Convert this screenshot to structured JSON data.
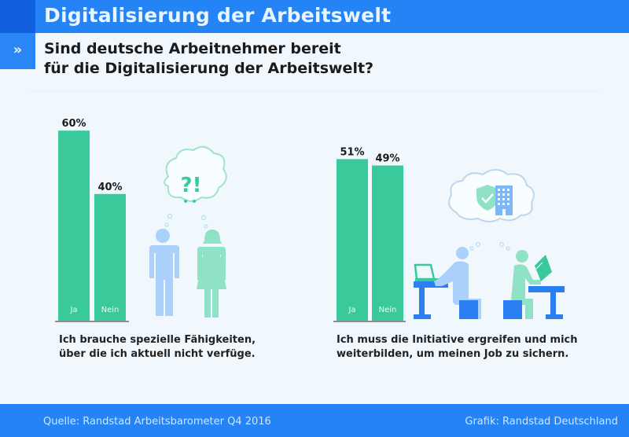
{
  "header": {
    "title": "Digitalisierung der Arbeitswelt",
    "marker_icon": "double-chevron-right-icon",
    "marker_glyph": "»"
  },
  "question": {
    "line1": "Sind deutsche Arbeitnehmer bereit",
    "line2": "für die Digitalisierung der Arbeitswelt?"
  },
  "colors": {
    "bar": "#39c99b",
    "header": "#2584f5",
    "accent_dark": "#0f5fdf",
    "figure_blue": "#a9d1fb",
    "figure_green": "#8fe2c6",
    "furniture": "#2b7ff0"
  },
  "chart_data": [
    {
      "type": "bar",
      "title": "Ich brauche spezielle Fähigkeiten, über die ich aktuell nicht verfüge.",
      "categories": [
        "Ja",
        "Nein"
      ],
      "values": [
        60,
        40
      ],
      "value_labels": [
        "60%",
        "40%"
      ],
      "unit": "%",
      "ylim": [
        0,
        100
      ],
      "grid": false,
      "caption": {
        "line1": "Ich brauche spezielle Fähigkeiten,",
        "line2": "über die ich aktuell nicht verfüge."
      }
    },
    {
      "type": "bar",
      "title": "Ich muss die Initiative ergreifen und mich weiterbilden, um meinen Job zu sichern.",
      "categories": [
        "Ja",
        "Nein"
      ],
      "values": [
        51,
        49
      ],
      "value_labels": [
        "51%",
        "49%"
      ],
      "unit": "%",
      "ylim": [
        0,
        100
      ],
      "grid": false,
      "caption": {
        "line1": "Ich muss die Initiative ergreifen und mich",
        "line2": "weiterbilden, um meinen Job zu sichern."
      }
    }
  ],
  "illustrations": {
    "left_thought": "?!",
    "left_icons": [
      "man-icon",
      "woman-icon",
      "thought-bubble-icon"
    ],
    "right_icons": [
      "shield-check-icon",
      "office-building-icon",
      "person-laptop-icon",
      "person-reading-icon"
    ]
  },
  "footer": {
    "source": "Quelle: Randstad Arbeitsbarometer Q4 2016",
    "credit": "Grafik: Randstad Deutschland"
  }
}
